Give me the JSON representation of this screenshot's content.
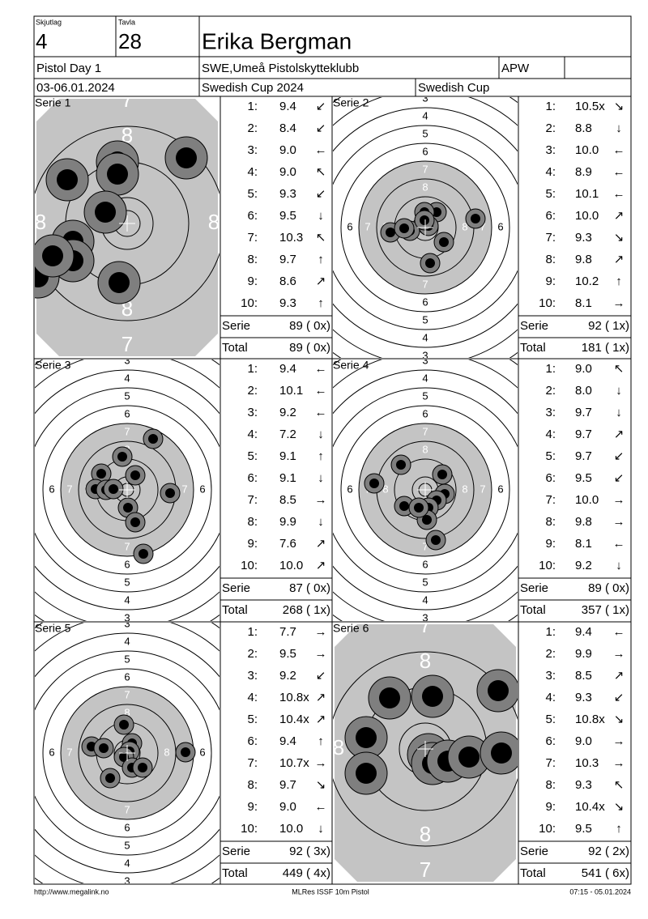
{
  "header": {
    "squad_label": "Skjutlag",
    "squad": "4",
    "lane_label": "Tavla",
    "lane": "28",
    "name": "Erika Bergman",
    "event": "Pistol Day 1",
    "club": "SWE,Umeå Pistolskytteklubb",
    "class": "APW",
    "dates": "03-06.01.2024",
    "competition": "Swedish Cup 2024",
    "cup": "Swedish Cup"
  },
  "target_labels": {
    "standard": {
      "top": [
        "3",
        "4",
        "5",
        "6",
        "7",
        "8"
      ],
      "bottom": [
        "7",
        "6",
        "5",
        "4",
        "3"
      ],
      "left": [
        "6",
        "7",
        "8"
      ],
      "right": [
        "8",
        "7",
        "6"
      ]
    },
    "zoomed": {
      "top": [
        "7",
        "8"
      ],
      "bottom": [
        "8",
        "7"
      ],
      "left": [
        "8"
      ],
      "right": [
        "8"
      ]
    }
  },
  "series": [
    {
      "label": "Serie 1",
      "view": "zoomed",
      "shots": [
        {
          "n": "1:",
          "score": "9.4",
          "dir": "↙"
        },
        {
          "n": "2:",
          "score": "8.4",
          "dir": "↙"
        },
        {
          "n": "3:",
          "score": "9.0",
          "dir": "←"
        },
        {
          "n": "4:",
          "score": "9.0",
          "dir": "↖"
        },
        {
          "n": "5:",
          "score": "9.3",
          "dir": "↙"
        },
        {
          "n": "6:",
          "score": "9.5",
          "dir": "↓"
        },
        {
          "n": "7:",
          "score": "10.3",
          "dir": "↖"
        },
        {
          "n": "8:",
          "score": "9.7",
          "dir": "↑"
        },
        {
          "n": "9:",
          "score": "8.6",
          "dir": "↗"
        },
        {
          "n": "10:",
          "score": "9.3",
          "dir": "↑"
        }
      ],
      "serie_label": "Serie",
      "serie_score": "89 ( 0x)",
      "total_label": "Total",
      "total_score": "89 ( 0x)"
    },
    {
      "label": "Serie 2",
      "view": "standard",
      "shots": [
        {
          "n": "1:",
          "score": "10.5x",
          "dir": "↘"
        },
        {
          "n": "2:",
          "score": "8.8",
          "dir": "↓"
        },
        {
          "n": "3:",
          "score": "10.0",
          "dir": "←"
        },
        {
          "n": "4:",
          "score": "8.9",
          "dir": "←"
        },
        {
          "n": "5:",
          "score": "10.1",
          "dir": "←"
        },
        {
          "n": "6:",
          "score": "10.0",
          "dir": "↗"
        },
        {
          "n": "7:",
          "score": "9.3",
          "dir": "↘"
        },
        {
          "n": "8:",
          "score": "9.8",
          "dir": "↗"
        },
        {
          "n": "9:",
          "score": "10.2",
          "dir": "↑"
        },
        {
          "n": "10:",
          "score": "8.1",
          "dir": "→"
        }
      ],
      "serie_label": "Serie",
      "serie_score": "92 ( 1x)",
      "total_label": "Total",
      "total_score": "181 ( 1x)"
    },
    {
      "label": "Serie 3",
      "view": "standard",
      "shots": [
        {
          "n": "1:",
          "score": "9.4",
          "dir": "←"
        },
        {
          "n": "2:",
          "score": "10.1",
          "dir": "←"
        },
        {
          "n": "3:",
          "score": "9.2",
          "dir": "←"
        },
        {
          "n": "4:",
          "score": "7.2",
          "dir": "↓"
        },
        {
          "n": "5:",
          "score": "9.1",
          "dir": "↑"
        },
        {
          "n": "6:",
          "score": "9.1",
          "dir": "↓"
        },
        {
          "n": "7:",
          "score": "8.5",
          "dir": "→"
        },
        {
          "n": "8:",
          "score": "9.9",
          "dir": "↓"
        },
        {
          "n": "9:",
          "score": "7.6",
          "dir": "↗"
        },
        {
          "n": "10:",
          "score": "10.0",
          "dir": "↗"
        }
      ],
      "serie_label": "Serie",
      "serie_score": "87 ( 0x)",
      "total_label": "Total",
      "total_score": "268 ( 1x)"
    },
    {
      "label": "Serie 4",
      "view": "standard",
      "shots": [
        {
          "n": "1:",
          "score": "9.0",
          "dir": "↖"
        },
        {
          "n": "2:",
          "score": "8.0",
          "dir": "↓"
        },
        {
          "n": "3:",
          "score": "9.7",
          "dir": "↓"
        },
        {
          "n": "4:",
          "score": "9.7",
          "dir": "↗"
        },
        {
          "n": "5:",
          "score": "9.7",
          "dir": "↙"
        },
        {
          "n": "6:",
          "score": "9.5",
          "dir": "↙"
        },
        {
          "n": "7:",
          "score": "10.0",
          "dir": "→"
        },
        {
          "n": "8:",
          "score": "9.8",
          "dir": "→"
        },
        {
          "n": "9:",
          "score": "8.1",
          "dir": "←"
        },
        {
          "n": "10:",
          "score": "9.2",
          "dir": "↓"
        }
      ],
      "serie_label": "Serie",
      "serie_score": "89 ( 0x)",
      "total_label": "Total",
      "total_score": "357 ( 1x)"
    },
    {
      "label": "Serie 5",
      "view": "standard",
      "shots": [
        {
          "n": "1:",
          "score": "7.7",
          "dir": "→"
        },
        {
          "n": "2:",
          "score": "9.5",
          "dir": "→"
        },
        {
          "n": "3:",
          "score": "9.2",
          "dir": "↙"
        },
        {
          "n": "4:",
          "score": "10.8x",
          "dir": "↗"
        },
        {
          "n": "5:",
          "score": "10.4x",
          "dir": "↗"
        },
        {
          "n": "6:",
          "score": "9.4",
          "dir": "↑"
        },
        {
          "n": "7:",
          "score": "10.7x",
          "dir": "→"
        },
        {
          "n": "8:",
          "score": "9.7",
          "dir": "↘"
        },
        {
          "n": "9:",
          "score": "9.0",
          "dir": "←"
        },
        {
          "n": "10:",
          "score": "10.0",
          "dir": "↓"
        }
      ],
      "serie_label": "Serie",
      "serie_score": "92 ( 3x)",
      "total_label": "Total",
      "total_score": "449 ( 4x)"
    },
    {
      "label": "Serie 6",
      "view": "zoomed",
      "shots": [
        {
          "n": "1:",
          "score": "9.4",
          "dir": "←"
        },
        {
          "n": "2:",
          "score": "9.9",
          "dir": "→"
        },
        {
          "n": "3:",
          "score": "8.5",
          "dir": "↗"
        },
        {
          "n": "4:",
          "score": "9.3",
          "dir": "↙"
        },
        {
          "n": "5:",
          "score": "10.8x",
          "dir": "↘"
        },
        {
          "n": "6:",
          "score": "9.0",
          "dir": "→"
        },
        {
          "n": "7:",
          "score": "10.3",
          "dir": "→"
        },
        {
          "n": "8:",
          "score": "9.3",
          "dir": "↖"
        },
        {
          "n": "9:",
          "score": "10.4x",
          "dir": "↘"
        },
        {
          "n": "10:",
          "score": "9.5",
          "dir": "↑"
        }
      ],
      "serie_label": "Serie",
      "serie_score": "92 ( 2x)",
      "total_label": "Total",
      "total_score": "541 ( 6x)"
    }
  ],
  "footer": {
    "url": "http://www.megalink.no",
    "software": "MLRes ISSF 10m Pistol",
    "timestamp": "07:15 - 05.01.2024"
  }
}
